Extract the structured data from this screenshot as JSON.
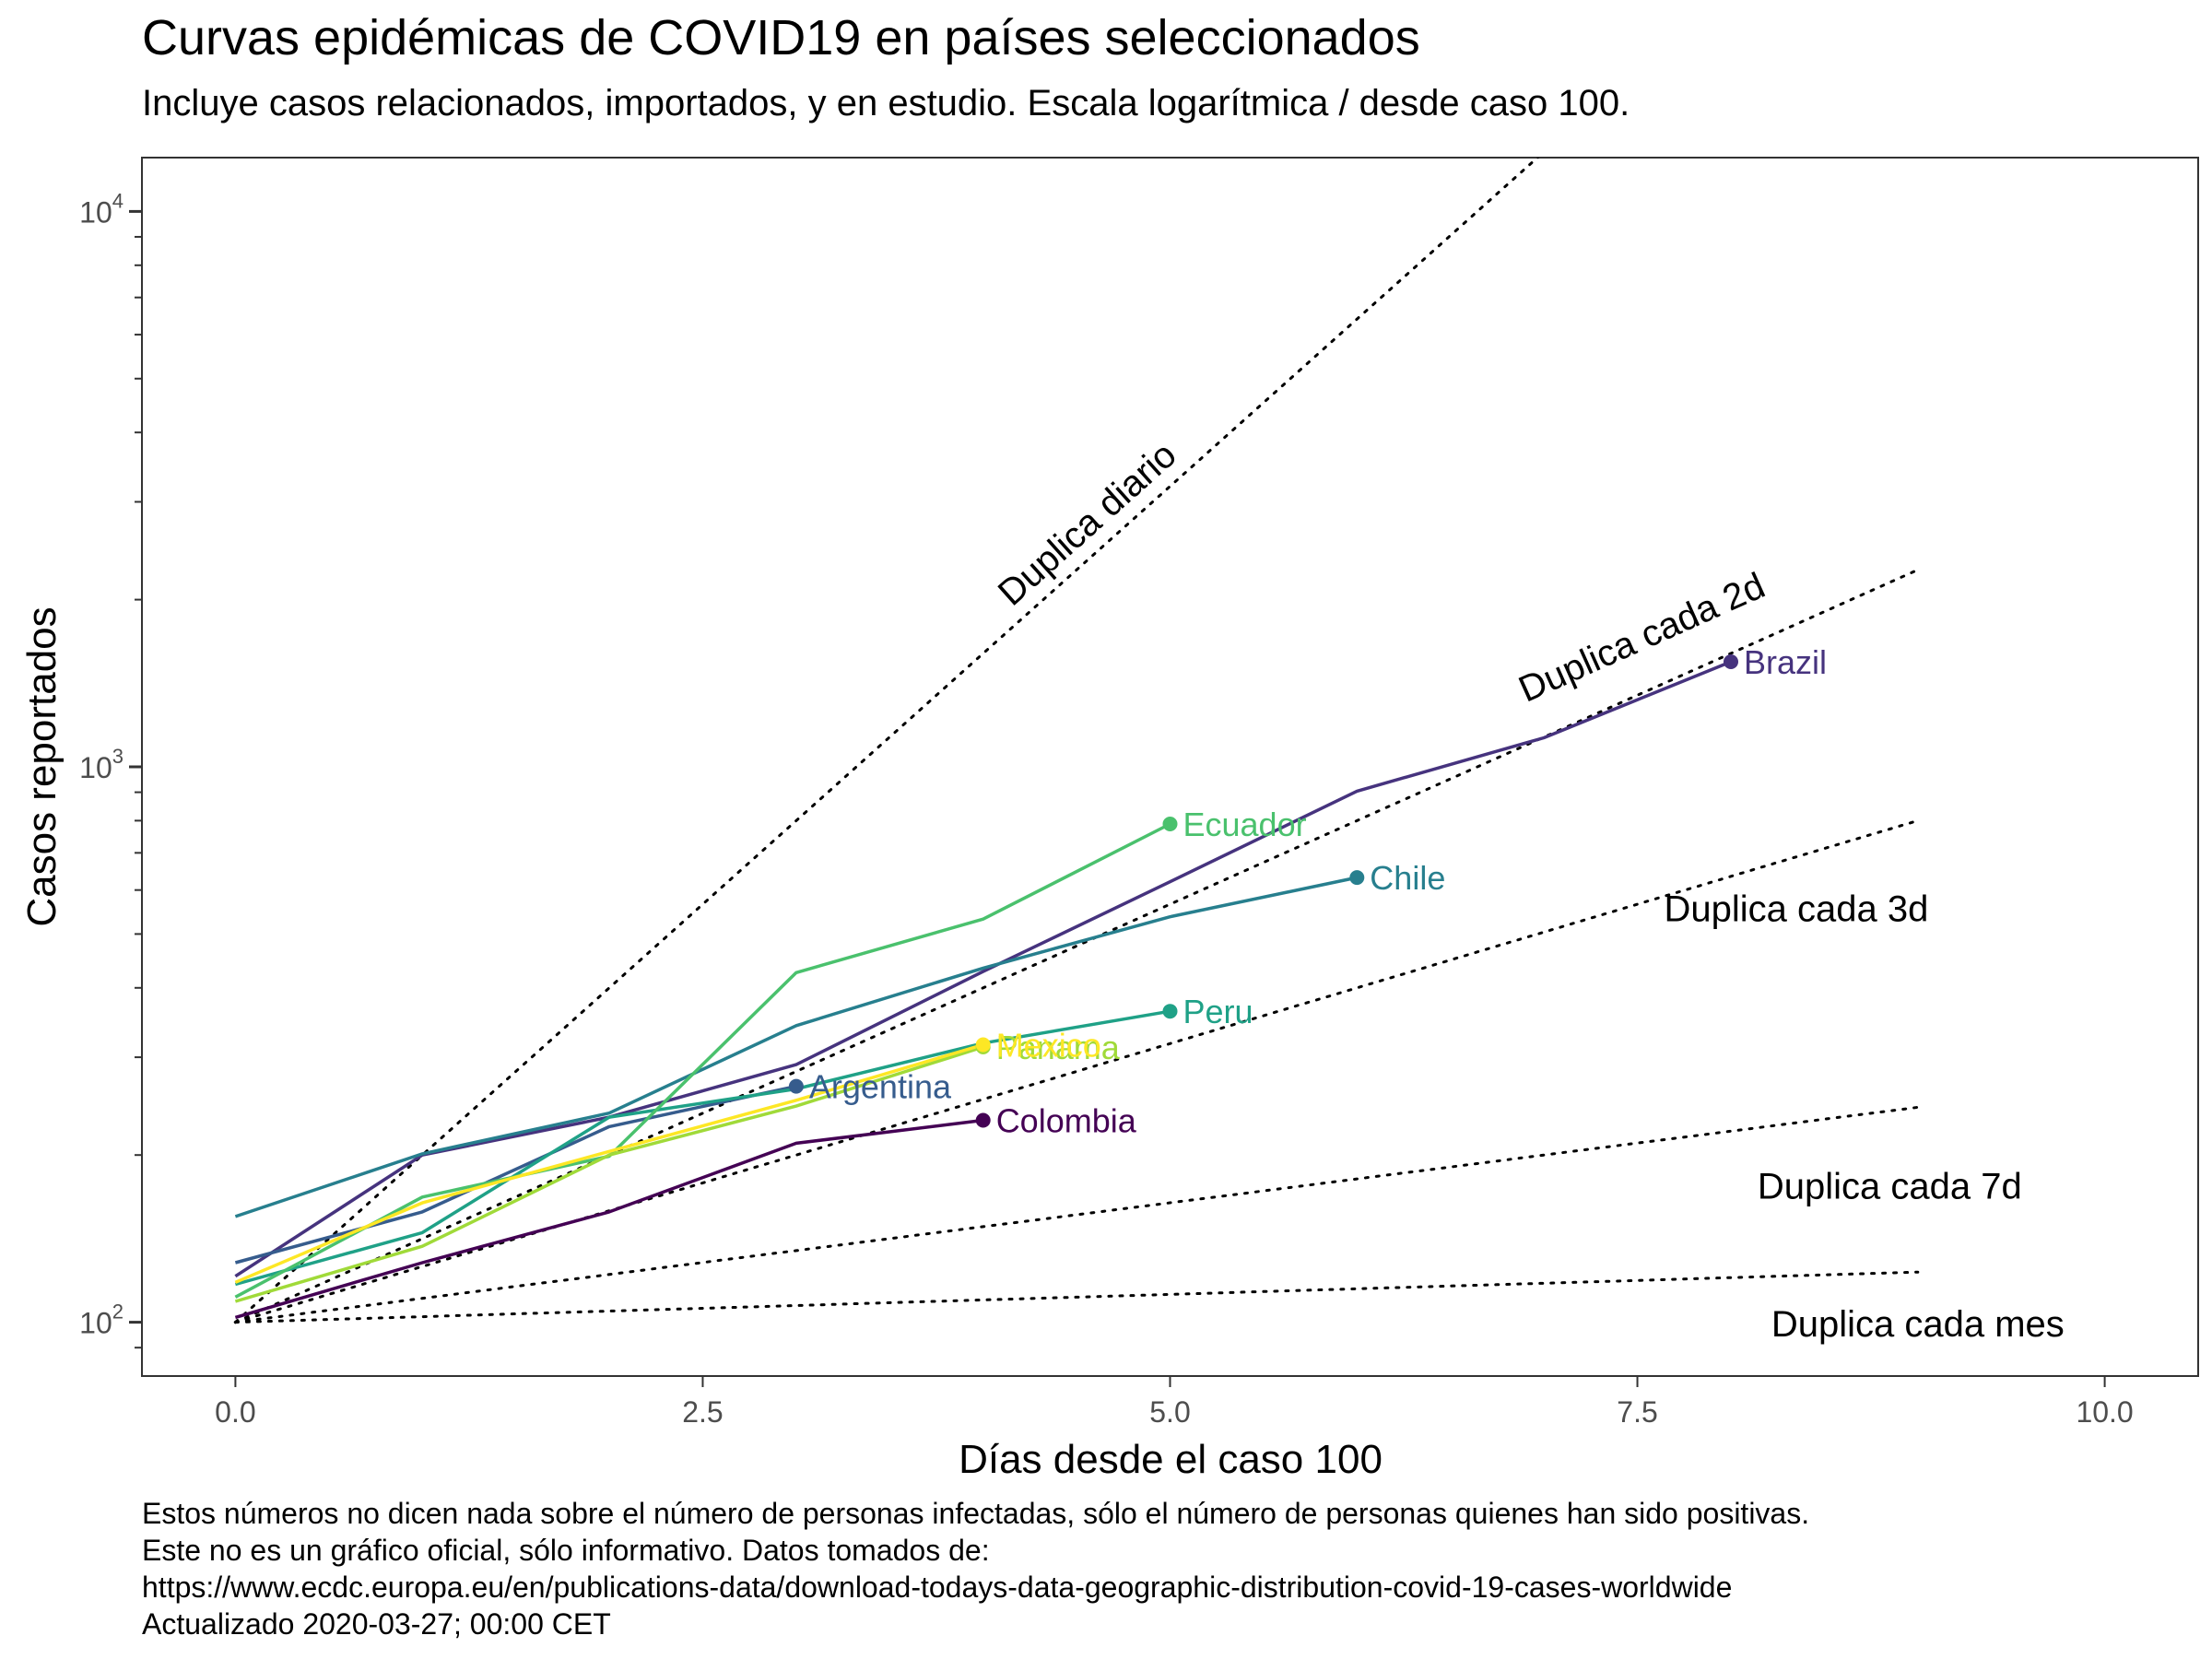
{
  "chart_data": {
    "type": "line",
    "title": "Curvas epidémicas de COVID19 en países seleccionados",
    "subtitle": "Incluye casos relacionados, importados, y en estudio. Escala logarítmica / desde caso 100.",
    "xlabel": "Días desde el caso 100",
    "ylabel": "Casos reportados",
    "x_scale": "linear",
    "y_scale": "log10",
    "xlim": [
      -0.5,
      10.5
    ],
    "ylim": [
      80,
      12500
    ],
    "x_ticks": [
      0,
      2.5,
      5,
      7.5,
      10
    ],
    "x_tick_labels": [
      "0.0",
      "2.5",
      "5.0",
      "7.5",
      "10.0"
    ],
    "y_ticks": [
      100,
      1000,
      10000
    ],
    "y_tick_labels": [
      {
        "base": "10",
        "exp": "2"
      },
      {
        "base": "10",
        "exp": "3"
      },
      {
        "base": "10",
        "exp": "4"
      }
    ],
    "grid": false,
    "legend": "none",
    "series": [
      {
        "name": "Colombia",
        "color": "#440154",
        "x": [
          0,
          1,
          2,
          3,
          4
        ],
        "y": [
          102,
          128,
          158,
          210,
          231
        ]
      },
      {
        "name": "Brazil",
        "color": "#46337e",
        "x": [
          0,
          1,
          2,
          3,
          4,
          5,
          6,
          7,
          8
        ],
        "y": [
          121,
          200,
          234,
          291,
          428,
          621,
          904,
          1128,
          1546
        ]
      },
      {
        "name": "Argentina",
        "color": "#365c8d",
        "x": [
          0,
          1,
          2,
          3
        ],
        "y": [
          128,
          158,
          225,
          266
        ]
      },
      {
        "name": "Chile",
        "color": "#277f8e",
        "x": [
          0,
          1,
          2,
          3,
          4,
          5,
          6
        ],
        "y": [
          155,
          201,
          238,
          342,
          434,
          537,
          632
        ]
      },
      {
        "name": "Peru",
        "color": "#1fa187",
        "x": [
          0,
          1,
          2,
          3,
          4,
          5
        ],
        "y": [
          117,
          145,
          234,
          263,
          318,
          363
        ]
      },
      {
        "name": "Ecuador",
        "color": "#4ac16d",
        "x": [
          0,
          1,
          2,
          3,
          4,
          5
        ],
        "y": [
          111,
          168,
          199,
          426,
          532,
          789
        ]
      },
      {
        "name": "Panama",
        "color": "#a0da39",
        "x": [
          0,
          1,
          2,
          3,
          4
        ],
        "y": [
          109,
          137,
          200,
          245,
          313
        ]
      },
      {
        "name": "Mexico",
        "color": "#fde725",
        "x": [
          0,
          1,
          2,
          3,
          4
        ],
        "y": [
          118,
          164,
          203,
          251,
          316
        ]
      }
    ],
    "reference_lines": [
      {
        "label": "Duplica diario",
        "doubling_days": 1
      },
      {
        "label": "Duplica cada 2d",
        "doubling_days": 2
      },
      {
        "label": "Duplica cada 3d",
        "doubling_days": 3
      },
      {
        "label": "Duplica cada 7d",
        "doubling_days": 7
      },
      {
        "label": "Duplica cada mes",
        "doubling_days": 30
      }
    ],
    "caption": [
      "Estos números no dicen nada sobre el número de personas infectadas, sólo el número de personas quienes han sido positivas.",
      "Este no es un gráfico oficial, sólo informativo. Datos tomados de:",
      "https://www.ecdc.europa.eu/en/publications-data/download-todays-data-geographic-distribution-covid-19-cases-worldwide",
      "Actualizado 2020-03-27; 00:00 CET"
    ]
  }
}
